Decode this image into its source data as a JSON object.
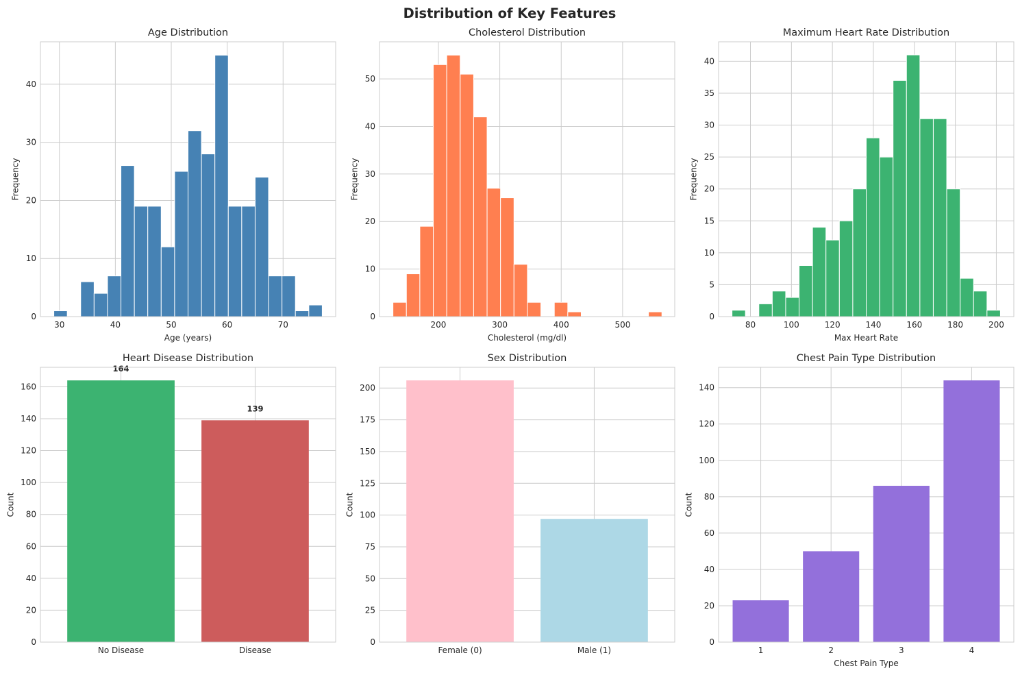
{
  "figure_title": "Distribution of Key Features",
  "chart_data": [
    {
      "type": "bar",
      "subtype": "histogram",
      "title": "Age Distribution",
      "xlabel": "Age (years)",
      "ylabel": "Frequency",
      "color": "#4682b4",
      "xlim": [
        26.6,
        79.4
      ],
      "ylim": [
        0,
        47.3
      ],
      "xticks": [
        30,
        40,
        50,
        60,
        70
      ],
      "yticks": [
        0,
        10,
        20,
        30,
        40
      ],
      "bins": [
        [
          29.0,
          31.4,
          1
        ],
        [
          31.4,
          33.8,
          0
        ],
        [
          33.8,
          36.2,
          6
        ],
        [
          36.2,
          38.6,
          4
        ],
        [
          38.6,
          41.0,
          7
        ],
        [
          41.0,
          43.4,
          26
        ],
        [
          43.4,
          45.8,
          19
        ],
        [
          45.8,
          48.2,
          19
        ],
        [
          48.2,
          50.6,
          12
        ],
        [
          50.6,
          53.0,
          25
        ],
        [
          53.0,
          55.4,
          32
        ],
        [
          55.4,
          57.8,
          28
        ],
        [
          57.8,
          60.2,
          45
        ],
        [
          60.2,
          62.6,
          19
        ],
        [
          62.6,
          65.0,
          19
        ],
        [
          65.0,
          67.4,
          24
        ],
        [
          67.4,
          69.8,
          7
        ],
        [
          69.8,
          72.2,
          7
        ],
        [
          72.2,
          74.6,
          1
        ],
        [
          74.6,
          77.0,
          2
        ]
      ],
      "grid": true
    },
    {
      "type": "bar",
      "subtype": "histogram",
      "title": "Cholesterol Distribution",
      "xlabel": "Cholesterol (mg/dl)",
      "ylabel": "Frequency",
      "color": "#ff7f50",
      "xlim": [
        104.1,
        584.9
      ],
      "ylim": [
        0,
        57.8
      ],
      "xticks": [
        200,
        300,
        400,
        500
      ],
      "yticks": [
        0,
        10,
        20,
        30,
        40,
        50
      ],
      "bins": [
        [
          126.0,
          147.9,
          3
        ],
        [
          147.9,
          169.8,
          9
        ],
        [
          169.8,
          191.7,
          19
        ],
        [
          191.7,
          213.6,
          53
        ],
        [
          213.6,
          235.5,
          55
        ],
        [
          235.5,
          257.4,
          51
        ],
        [
          257.4,
          279.3,
          42
        ],
        [
          279.3,
          301.2,
          27
        ],
        [
          301.2,
          323.1,
          25
        ],
        [
          323.1,
          345.0,
          11
        ],
        [
          345.0,
          366.9,
          3
        ],
        [
          366.9,
          388.8,
          0
        ],
        [
          388.8,
          410.7,
          3
        ],
        [
          410.7,
          432.6,
          1
        ],
        [
          432.6,
          454.5,
          0
        ],
        [
          454.5,
          476.4,
          0
        ],
        [
          476.4,
          498.3,
          0
        ],
        [
          498.3,
          520.2,
          0
        ],
        [
          520.2,
          542.1,
          0
        ],
        [
          542.1,
          564.0,
          1
        ]
      ],
      "grid": true
    },
    {
      "type": "bar",
      "subtype": "histogram",
      "title": "Maximum Heart Rate Distribution",
      "xlabel": "Max Heart Rate",
      "ylabel": "Frequency",
      "color": "#3cb371",
      "xlim": [
        64.45,
        208.55
      ],
      "ylim": [
        0,
        43.05
      ],
      "xticks": [
        80,
        100,
        120,
        140,
        160,
        180,
        200
      ],
      "yticks": [
        0,
        5,
        10,
        15,
        20,
        25,
        30,
        35,
        40
      ],
      "bins": [
        [
          71.0,
          77.55,
          1
        ],
        [
          77.55,
          84.1,
          0
        ],
        [
          84.1,
          90.65,
          2
        ],
        [
          90.65,
          97.2,
          4
        ],
        [
          97.2,
          103.75,
          3
        ],
        [
          103.75,
          110.3,
          8
        ],
        [
          110.3,
          116.85,
          14
        ],
        [
          116.85,
          123.4,
          12
        ],
        [
          123.4,
          129.95,
          15
        ],
        [
          129.95,
          136.5,
          20
        ],
        [
          136.5,
          143.05,
          28
        ],
        [
          143.05,
          149.6,
          25
        ],
        [
          149.6,
          156.15,
          37
        ],
        [
          156.15,
          162.7,
          41
        ],
        [
          162.7,
          169.25,
          31
        ],
        [
          169.25,
          175.8,
          31
        ],
        [
          175.8,
          182.35,
          20
        ],
        [
          182.35,
          188.9,
          6
        ],
        [
          188.9,
          195.45,
          4
        ],
        [
          195.45,
          202.0,
          1
        ]
      ],
      "grid": true
    },
    {
      "type": "bar",
      "title": "Heart Disease Distribution",
      "xlabel": "",
      "ylabel": "Count",
      "categories": [
        "No Disease",
        "Disease"
      ],
      "values": [
        164,
        139
      ],
      "colors": [
        "#3cb371",
        "#cd5c5c"
      ],
      "data_labels": [
        "164",
        "139"
      ],
      "ylim": [
        0,
        172.2
      ],
      "yticks": [
        0,
        20,
        40,
        60,
        80,
        100,
        120,
        140,
        160
      ],
      "grid": true
    },
    {
      "type": "bar",
      "title": "Sex Distribution",
      "xlabel": "",
      "ylabel": "Count",
      "categories": [
        "Female (0)",
        "Male (1)"
      ],
      "values": [
        206,
        97
      ],
      "colors": [
        "#ffc0cb",
        "#add8e6"
      ],
      "ylim": [
        0,
        216.3
      ],
      "yticks": [
        0,
        25,
        50,
        75,
        100,
        125,
        150,
        175,
        200
      ],
      "grid": true
    },
    {
      "type": "bar",
      "title": "Chest Pain Type Distribution",
      "xlabel": "Chest Pain Type",
      "ylabel": "Count",
      "categories": [
        "1",
        "2",
        "3",
        "4"
      ],
      "values": [
        23,
        50,
        86,
        144
      ],
      "color": "#9370db",
      "ylim": [
        0,
        151.2
      ],
      "yticks": [
        0,
        20,
        40,
        60,
        80,
        100,
        120,
        140
      ],
      "grid": true
    }
  ]
}
